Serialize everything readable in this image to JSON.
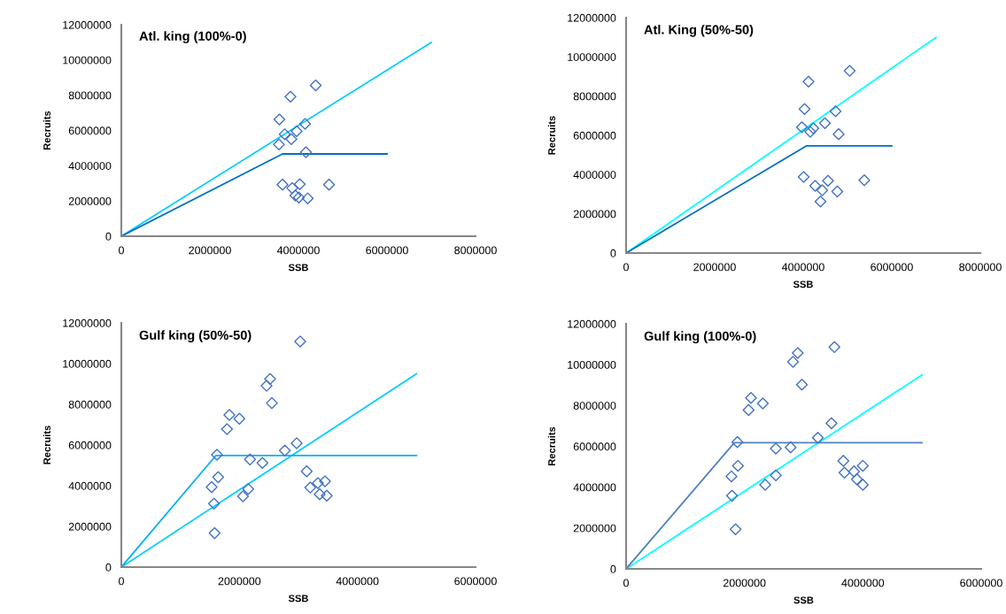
{
  "chart_data": [
    {
      "type": "scatter",
      "title": "Atl. king (100%-0)",
      "xlabel": "SSB",
      "ylabel": "Recruits",
      "xlim": [
        0,
        8000000
      ],
      "xticks": [
        0,
        2000000,
        4000000,
        6000000,
        8000000
      ],
      "ylim": [
        0,
        12000000
      ],
      "yticks": [
        0,
        2000000,
        4000000,
        6000000,
        8000000,
        10000000,
        12000000
      ],
      "grid": false,
      "legend": false,
      "series": [
        {
          "color": "#4472c4",
          "marker": "diamond",
          "x": [
            4390000,
            3820000,
            3570000,
            4150000,
            3690000,
            3960000,
            3840000,
            3560000,
            4170000,
            3640000,
            4030000,
            3860000,
            4690000,
            3930000,
            4010000,
            4210000
          ],
          "values": [
            8560000,
            7920000,
            6630000,
            6380000,
            5790000,
            5960000,
            5510000,
            5210000,
            4770000,
            2930000,
            2950000,
            2730000,
            2930000,
            2310000,
            2200000,
            2150000
          ]
        },
        {
          "type": "line",
          "color": "#00ccff",
          "marker": "none",
          "line_style": "solid",
          "x": [
            0,
            7000000
          ],
          "values": [
            0,
            11000000
          ]
        },
        {
          "type": "line",
          "color": "#0070c0",
          "marker": "none",
          "line_style": "solid",
          "x": [
            0,
            3640000,
            6000000
          ],
          "values": [
            0,
            4670000,
            4670000
          ]
        }
      ]
    },
    {
      "type": "scatter",
      "title": "Atl. King (50%-50)",
      "xlabel": "SSB",
      "ylabel": "Recruits",
      "xlim": [
        0,
        8000000
      ],
      "xticks": [
        0,
        2000000,
        4000000,
        6000000,
        8000000
      ],
      "ylim": [
        0,
        12000000
      ],
      "yticks": [
        0,
        2000000,
        4000000,
        6000000,
        8000000,
        10000000,
        12000000
      ],
      "grid": false,
      "legend": false,
      "series": [
        {
          "color": "#4472c4",
          "marker": "diamond",
          "x": [
            5050000,
            4120000,
            4030000,
            4730000,
            3970000,
            4230000,
            4160000,
            4490000,
            4800000,
            4010000,
            4270000,
            4560000,
            4430000,
            4770000,
            5380000,
            4390000
          ],
          "values": [
            9290000,
            8740000,
            7340000,
            7230000,
            6420000,
            6360000,
            6180000,
            6620000,
            6060000,
            3880000,
            3430000,
            3690000,
            3200000,
            3140000,
            3710000,
            2630000
          ]
        },
        {
          "type": "line",
          "color": "#00ffff",
          "marker": "none",
          "line_style": "solid",
          "x": [
            0,
            7000000
          ],
          "values": [
            0,
            11000000
          ]
        },
        {
          "type": "line",
          "color": "#0070c0",
          "marker": "none",
          "line_style": "solid",
          "x": [
            0,
            4070000,
            6000000
          ],
          "values": [
            0,
            5460000,
            5460000
          ]
        }
      ]
    },
    {
      "type": "scatter",
      "title": "Gulf king (50%-50)",
      "xlabel": "SSB",
      "ylabel": "Recruits",
      "xlim": [
        0,
        6000000
      ],
      "xticks": [
        0,
        2000000,
        4000000,
        6000000
      ],
      "ylim": [
        0,
        12000000
      ],
      "yticks": [
        0,
        2000000,
        4000000,
        6000000,
        8000000,
        10000000,
        12000000
      ],
      "grid": false,
      "legend": false,
      "series": [
        {
          "color": "#4472c4",
          "marker": "diamond",
          "x": [
            3030000,
            2520000,
            2460000,
            2550000,
            1830000,
            2000000,
            1790000,
            2970000,
            2770000,
            1620000,
            2180000,
            2390000,
            3140000,
            1640000,
            1530000,
            2150000,
            2060000,
            3200000,
            3330000,
            3450000,
            3360000,
            3480000,
            1570000,
            1580000
          ],
          "values": [
            11090000,
            9250000,
            8910000,
            8060000,
            7480000,
            7290000,
            6780000,
            6090000,
            5730000,
            5520000,
            5290000,
            5120000,
            4710000,
            4420000,
            3930000,
            3840000,
            3480000,
            3910000,
            4130000,
            4220000,
            3580000,
            3510000,
            3120000,
            1670000
          ]
        },
        {
          "type": "line",
          "color": "#00ccff",
          "marker": "none",
          "line_style": "solid",
          "x": [
            0,
            5000000
          ],
          "values": [
            0,
            9500000
          ]
        },
        {
          "type": "line",
          "color": "#00b0f0",
          "marker": "none",
          "line_style": "solid",
          "x": [
            0,
            1600000,
            5000000
          ],
          "values": [
            0,
            5480000,
            5480000
          ]
        }
      ]
    },
    {
      "type": "scatter",
      "title": "Gulf king (100%-0)",
      "xlabel": "SSB",
      "ylabel": "Recruits",
      "xlim": [
        0,
        6000000
      ],
      "xticks": [
        0,
        2000000,
        4000000,
        6000000
      ],
      "ylim": [
        0,
        12000000
      ],
      "yticks": [
        0,
        2000000,
        4000000,
        6000000,
        8000000,
        10000000,
        12000000
      ],
      "grid": false,
      "legend": false,
      "series": [
        {
          "color": "#4472c4",
          "marker": "diamond",
          "x": [
            3520000,
            2900000,
            2820000,
            2970000,
            2110000,
            2310000,
            2070000,
            3470000,
            3240000,
            1880000,
            2530000,
            2780000,
            3670000,
            1890000,
            4000000,
            1780000,
            2530000,
            3690000,
            3850000,
            3900000,
            4000000,
            2350000,
            1790000,
            1850000
          ],
          "values": [
            10860000,
            10570000,
            10140000,
            9020000,
            8370000,
            8100000,
            7780000,
            7130000,
            6420000,
            6210000,
            5890000,
            5950000,
            5290000,
            5050000,
            5050000,
            4530000,
            4580000,
            4710000,
            4770000,
            4390000,
            4120000,
            4120000,
            3580000,
            1940000
          ]
        },
        {
          "type": "line",
          "color": "#00ffff",
          "marker": "none",
          "line_style": "solid",
          "x": [
            0,
            5000000
          ],
          "values": [
            0,
            9500000
          ]
        },
        {
          "type": "line",
          "color": "#4f81bd",
          "marker": "none",
          "line_style": "solid",
          "x": [
            0,
            1830000,
            5000000
          ],
          "values": [
            0,
            6180000,
            6180000
          ]
        }
      ]
    }
  ]
}
